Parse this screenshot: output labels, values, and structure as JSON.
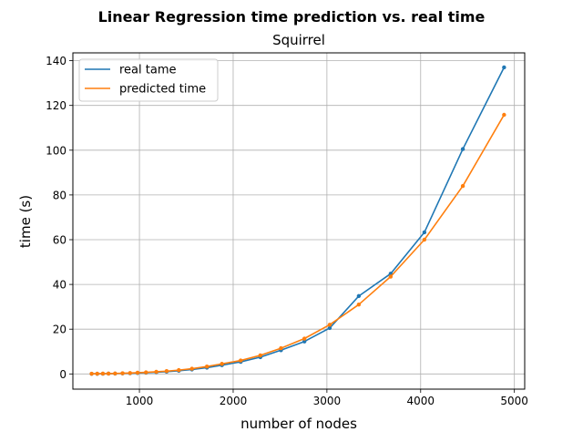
{
  "chart_data": {
    "type": "line",
    "suptitle": "Linear Regression time prediction vs. real time",
    "title": "Squirrel",
    "xlabel": "number of nodes",
    "ylabel": "time (s)",
    "xlim": [
      290,
      5110
    ],
    "ylim": [
      -6.8,
      143.5
    ],
    "xticks": [
      1000,
      2000,
      3000,
      4000,
      5000
    ],
    "yticks": [
      0,
      20,
      40,
      60,
      80,
      100,
      120,
      140
    ],
    "grid": true,
    "legend_position": "upper-left",
    "series": [
      {
        "name": "real tame",
        "color": "#1f77b4",
        "x": [
          490,
          550,
          610,
          670,
          740,
          820,
          900,
          980,
          1070,
          1180,
          1290,
          1420,
          1560,
          1720,
          1880,
          2080,
          2290,
          2510,
          2760,
          3030,
          3340,
          3680,
          4040,
          4450,
          4890
        ],
        "y": [
          0.05,
          0.07,
          0.1,
          0.13,
          0.17,
          0.23,
          0.3,
          0.4,
          0.55,
          0.75,
          1.0,
          1.4,
          2.0,
          2.8,
          3.9,
          5.4,
          7.5,
          10.6,
          14.5,
          20.5,
          34.8,
          44.8,
          63.3,
          100.5,
          137.0
        ]
      },
      {
        "name": "predicted time",
        "color": "#ff7f0e",
        "x": [
          490,
          550,
          610,
          670,
          740,
          820,
          900,
          980,
          1070,
          1180,
          1290,
          1420,
          1560,
          1720,
          1880,
          2080,
          2290,
          2510,
          2760,
          3030,
          3340,
          3680,
          4040,
          4450,
          4890
        ],
        "y": [
          0.08,
          0.1,
          0.13,
          0.17,
          0.22,
          0.3,
          0.4,
          0.55,
          0.72,
          0.95,
          1.25,
          1.7,
          2.35,
          3.3,
          4.5,
          6.0,
          8.3,
          11.5,
          15.8,
          22.0,
          31.0,
          43.5,
          60.0,
          84.0,
          115.8
        ]
      }
    ]
  }
}
